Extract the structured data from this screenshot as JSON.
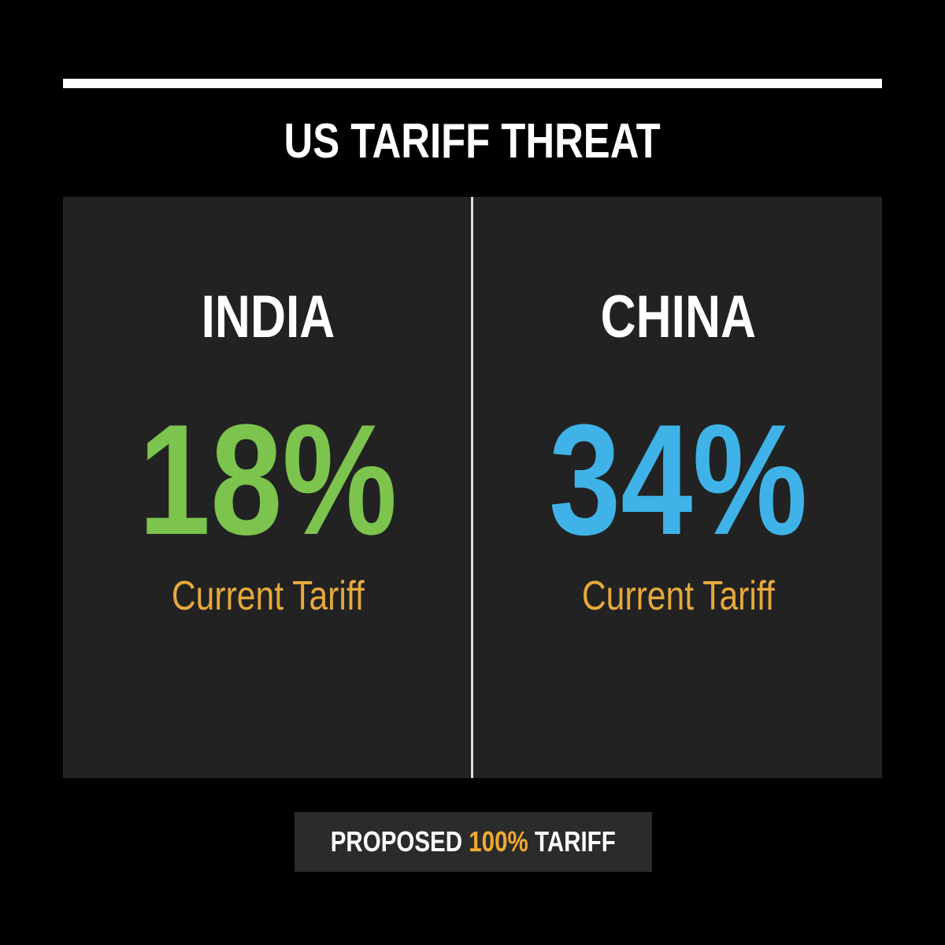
{
  "title": "US TARIFF THREAT",
  "panels": [
    {
      "country": "INDIA",
      "tariff": "18%",
      "label": "Current Tariff"
    },
    {
      "country": "CHINA",
      "tariff": "34%",
      "label": "Current Tariff"
    }
  ],
  "footer": {
    "prefix": "PROPOSED",
    "highlight": "100%",
    "suffix": "TARIFF"
  }
}
